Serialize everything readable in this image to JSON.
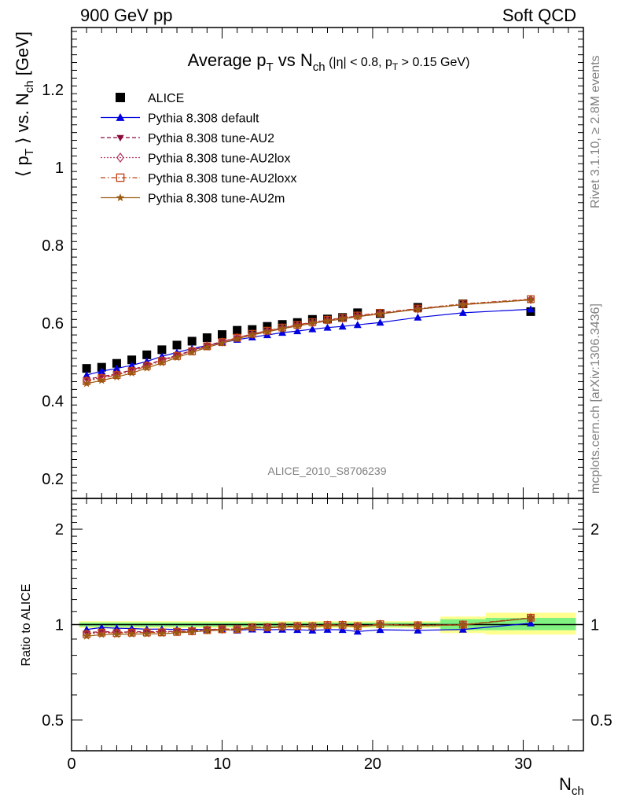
{
  "header": {
    "left": "900 GeV pp",
    "right": "Soft QCD"
  },
  "side_labels": {
    "top": "Rivet 3.1.10, ≥ 2.8M events",
    "bottom": "mcplots.cern.ch [arXiv:1306.3436]"
  },
  "chart_data": [
    {
      "type": "scatter",
      "title_parts": {
        "main": "Average p",
        "main_sub": "T",
        "vs": " vs N",
        "vs_sub": "ch",
        "cut_a": " (|η| < 0.8, p",
        "cut_sub": "T",
        "cut_b": " > 0.15 GeV)"
      },
      "ylabel_parts": {
        "a": "⟨ p",
        "a_sub": "T",
        "b": " ⟩ vs. N",
        "b_sub": "ch",
        "c": " [GeV]"
      },
      "watermark": "ALICE_2010_S8706239",
      "xlim": [
        0,
        34
      ],
      "ylim": [
        0.15,
        1.36
      ],
      "yticks": [
        0.2,
        0.4,
        0.6,
        0.8,
        1.0,
        1.2
      ],
      "ytick_labels": [
        "0.2",
        "0.4",
        "0.6",
        "0.8",
        "1",
        "1.2"
      ],
      "legend_position": "top-left",
      "x": [
        1,
        2,
        3,
        4,
        5,
        6,
        7,
        8,
        9,
        10,
        11,
        12,
        13,
        14,
        15,
        16,
        17,
        18,
        19,
        20.5,
        23,
        26,
        30.5
      ],
      "series": [
        {
          "name": "ALICE",
          "color": "#000000",
          "marker": "square-filled",
          "line": "none",
          "values": [
            0.484,
            0.487,
            0.497,
            0.506,
            0.519,
            0.532,
            0.544,
            0.554,
            0.563,
            0.571,
            0.582,
            0.584,
            0.592,
            0.597,
            0.602,
            0.61,
            0.611,
            0.615,
            0.627,
            0.625,
            0.641,
            0.65,
            0.63
          ]
        },
        {
          "name": "Pythia 8.308 default",
          "color": "#0000e0",
          "marker": "triangle-up-filled",
          "line": "solid",
          "values": [
            0.467,
            0.477,
            0.484,
            0.492,
            0.502,
            0.515,
            0.525,
            0.535,
            0.543,
            0.55,
            0.558,
            0.564,
            0.57,
            0.576,
            0.58,
            0.585,
            0.589,
            0.592,
            0.596,
            0.602,
            0.615,
            0.627,
            0.636
          ]
        },
        {
          "name": "Pythia 8.308 tune-AU2",
          "color": "#8b0a3c",
          "marker": "triangle-down-filled",
          "line": "dashed",
          "values": [
            0.456,
            0.463,
            0.47,
            0.48,
            0.493,
            0.506,
            0.518,
            0.53,
            0.543,
            0.553,
            0.563,
            0.572,
            0.58,
            0.587,
            0.594,
            0.601,
            0.607,
            0.612,
            0.618,
            0.625,
            0.636,
            0.648,
            0.66
          ]
        },
        {
          "name": "Pythia 8.308 tune-AU2lox",
          "color": "#b0305a",
          "marker": "diamond-open",
          "line": "dotted",
          "values": [
            0.453,
            0.461,
            0.469,
            0.479,
            0.492,
            0.505,
            0.517,
            0.529,
            0.542,
            0.552,
            0.563,
            0.572,
            0.58,
            0.588,
            0.595,
            0.602,
            0.608,
            0.613,
            0.619,
            0.626,
            0.637,
            0.649,
            0.661
          ]
        },
        {
          "name": "Pythia 8.308 tune-AU2loxx",
          "color": "#c04010",
          "marker": "square-open",
          "line": "dashdot",
          "values": [
            0.451,
            0.459,
            0.467,
            0.477,
            0.49,
            0.503,
            0.516,
            0.528,
            0.541,
            0.552,
            0.563,
            0.573,
            0.581,
            0.589,
            0.596,
            0.603,
            0.609,
            0.614,
            0.62,
            0.627,
            0.638,
            0.65,
            0.662
          ]
        },
        {
          "name": "Pythia 8.308 tune-AU2m",
          "color": "#9a5a10",
          "marker": "star-filled",
          "line": "solid",
          "values": [
            0.445,
            0.453,
            0.462,
            0.472,
            0.485,
            0.498,
            0.512,
            0.525,
            0.538,
            0.549,
            0.56,
            0.57,
            0.578,
            0.586,
            0.593,
            0.6,
            0.606,
            0.611,
            0.617,
            0.624,
            0.636,
            0.648,
            0.66
          ]
        }
      ]
    },
    {
      "type": "line",
      "ylabel": "Ratio to ALICE",
      "reference": "ALICE",
      "xlabel_parts": {
        "main": "N",
        "sub": "ch"
      },
      "xlim": [
        0,
        34
      ],
      "xticks": [
        0,
        10,
        20,
        30
      ],
      "xtick_labels": [
        "0",
        "10",
        "20",
        "30"
      ],
      "ylim": [
        0.4,
        2.5
      ],
      "y_scale": "log",
      "yticks": [
        0.5,
        1,
        2
      ],
      "ytick_labels": [
        "0.5",
        "1",
        "2"
      ],
      "bands": {
        "green_color": "#80f080",
        "yellow_color": "#ffff90",
        "segments": [
          {
            "x": [
              0.5,
              24.5
            ],
            "green": [
              0.985,
              1.015
            ],
            "yellow": [
              0.975,
              1.025
            ]
          },
          {
            "x": [
              24.5,
              27.5
            ],
            "green": [
              0.96,
              1.04
            ],
            "yellow": [
              0.94,
              1.06
            ]
          },
          {
            "x": [
              27.5,
              33.5
            ],
            "green": [
              0.96,
              1.05
            ],
            "yellow": [
              0.93,
              1.09
            ]
          }
        ]
      },
      "x": [
        1,
        2,
        3,
        4,
        5,
        6,
        7,
        8,
        9,
        10,
        11,
        12,
        13,
        14,
        15,
        16,
        17,
        18,
        19,
        20.5,
        23,
        26,
        30.5
      ],
      "series": [
        {
          "name": "Pythia 8.308 default",
          "color": "#0000e0",
          "marker": "triangle-up-filled",
          "line": "solid",
          "values": [
            0.965,
            0.979,
            0.974,
            0.972,
            0.967,
            0.968,
            0.965,
            0.966,
            0.964,
            0.963,
            0.959,
            0.966,
            0.963,
            0.965,
            0.963,
            0.959,
            0.964,
            0.963,
            0.951,
            0.963,
            0.959,
            0.965,
            1.01
          ]
        },
        {
          "name": "Pythia 8.308 tune-AU2",
          "color": "#8b0a3c",
          "marker": "triangle-down-filled",
          "line": "dashed",
          "values": [
            0.942,
            0.951,
            0.946,
            0.949,
            0.95,
            0.951,
            0.952,
            0.957,
            0.964,
            0.969,
            0.967,
            0.979,
            0.98,
            0.983,
            0.987,
            0.985,
            0.993,
            0.995,
            0.986,
            1.0,
            0.992,
            0.997,
            1.048
          ]
        },
        {
          "name": "Pythia 8.308 tune-AU2lox",
          "color": "#b0305a",
          "marker": "diamond-open",
          "line": "dotted",
          "values": [
            0.936,
            0.947,
            0.944,
            0.947,
            0.948,
            0.949,
            0.95,
            0.955,
            0.963,
            0.967,
            0.967,
            0.979,
            0.98,
            0.985,
            0.988,
            0.987,
            0.995,
            0.997,
            0.987,
            1.002,
            0.994,
            0.998,
            1.049
          ]
        },
        {
          "name": "Pythia 8.308 tune-AU2loxx",
          "color": "#c04010",
          "marker": "square-open",
          "line": "dashdot",
          "values": [
            0.932,
            0.943,
            0.94,
            0.943,
            0.944,
            0.945,
            0.949,
            0.953,
            0.961,
            0.967,
            0.967,
            0.981,
            0.981,
            0.987,
            0.99,
            0.989,
            0.997,
            0.998,
            0.989,
            1.003,
            0.995,
            1.0,
            1.051
          ]
        },
        {
          "name": "Pythia 8.308 tune-AU2m",
          "color": "#9a5a10",
          "marker": "star-filled",
          "line": "solid",
          "values": [
            0.919,
            0.93,
            0.93,
            0.933,
            0.934,
            0.936,
            0.941,
            0.948,
            0.956,
            0.961,
            0.962,
            0.976,
            0.976,
            0.982,
            0.985,
            0.984,
            0.992,
            0.993,
            0.984,
            0.998,
            0.992,
            0.997,
            1.048
          ]
        }
      ]
    }
  ]
}
